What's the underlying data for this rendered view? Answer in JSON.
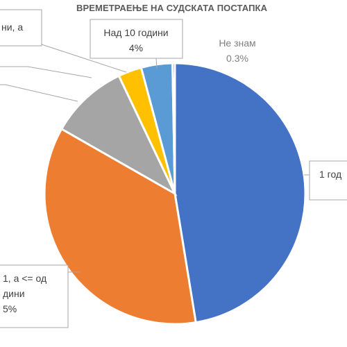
{
  "chart_data": {
    "type": "pie",
    "title": "ВРЕМЕТРАЕЊЕ НА СУДСКАТА ПОСТАПКА",
    "slices": [
      {
        "label_lines": [
          "1 год"
        ],
        "value": 49,
        "color": "#4472c4"
      },
      {
        "label_lines": [
          "1, а <= од",
          "дини",
          "5%"
        ],
        "value": 37,
        "color": "#ed7d31"
      },
      {
        "label_lines": [],
        "value": 10,
        "color": "#a5a5a5"
      },
      {
        "label_lines": [
          "ни, а"
        ],
        "value": 3,
        "color": "#ffc000"
      },
      {
        "label_lines": [
          "Над 10 години",
          "4%"
        ],
        "value": 4,
        "color": "#5b9bd5"
      },
      {
        "label_lines": [
          "Не знам",
          "0.3%"
        ],
        "value": 0.3,
        "color": "#264478"
      }
    ]
  }
}
